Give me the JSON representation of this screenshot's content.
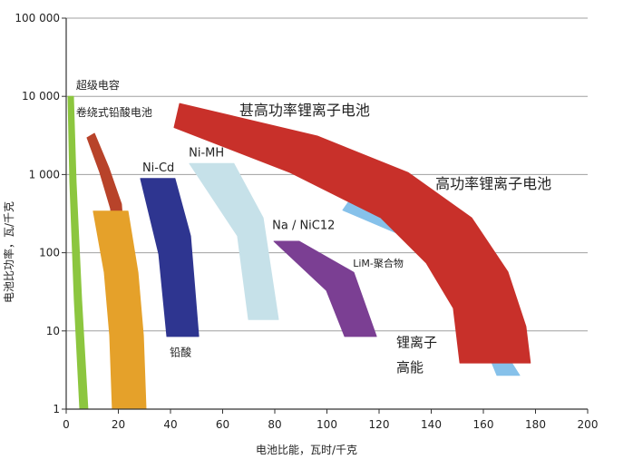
{
  "chart_data": {
    "type": "area",
    "title": "",
    "xlabel": "电池比能，瓦时/千克",
    "ylabel": "电池比功率，瓦/千克",
    "xlim": [
      0,
      200
    ],
    "ylim": [
      1,
      100000
    ],
    "yscale": "log",
    "grid": "horizontal",
    "x_ticks": [
      0,
      20,
      40,
      60,
      80,
      100,
      120,
      140,
      160,
      180,
      200
    ],
    "x_tick_labels": [
      "0",
      "20",
      "40",
      "60",
      "80",
      "100",
      "120",
      "140",
      "160",
      "180",
      "200"
    ],
    "y_ticks": [
      1,
      10,
      100,
      1000,
      10000,
      100000
    ],
    "y_tick_labels": [
      "1",
      "10",
      "100",
      "1 000",
      "10 000",
      "100 000"
    ],
    "regions": [
      {
        "name": "超级电容",
        "color": "#8cc63f",
        "points": [
          [
            0.7,
            10000
          ],
          [
            2.8,
            10000
          ],
          [
            3.8,
            810
          ],
          [
            5.9,
            25
          ],
          [
            8.3,
            1
          ],
          [
            5.2,
            1
          ],
          [
            3.1,
            25
          ],
          [
            1.4,
            810
          ]
        ]
      },
      {
        "name": "卷绕式铅酸电池",
        "color": "#b8432a",
        "points": [
          [
            8,
            2960
          ],
          [
            10.8,
            3360
          ],
          [
            16.3,
            1230
          ],
          [
            21.2,
            420
          ],
          [
            22.6,
            91
          ],
          [
            18.8,
            91
          ],
          [
            17,
            368
          ],
          [
            12.9,
            1060
          ]
        ]
      },
      {
        "name": "铅酸",
        "color": "#e5a12a",
        "points": [
          [
            10.4,
            340
          ],
          [
            23.7,
            340
          ],
          [
            27.5,
            56
          ],
          [
            29.6,
            8.7
          ],
          [
            30.6,
            1
          ],
          [
            17.7,
            1
          ],
          [
            16.7,
            8.7
          ],
          [
            14.6,
            56
          ]
        ]
      },
      {
        "name": "Ni-Cd",
        "color": "#2e3590",
        "points": [
          [
            28.5,
            890
          ],
          [
            41.7,
            890
          ],
          [
            47.7,
            164
          ],
          [
            50.8,
            8.5
          ],
          [
            38.6,
            8.5
          ],
          [
            35.5,
            96
          ]
        ]
      },
      {
        "name": "Ni-MH",
        "color": "#c6e1e9",
        "points": [
          [
            47.3,
            1380
          ],
          [
            64.3,
            1380
          ],
          [
            75.5,
            280
          ],
          [
            81.4,
            14
          ],
          [
            69.9,
            14
          ],
          [
            65.7,
            164
          ]
        ]
      },
      {
        "name": "Na / NiC12",
        "color": "#7b3f93",
        "points": [
          [
            79.7,
            140
          ],
          [
            89.4,
            140
          ],
          [
            110.3,
            56
          ],
          [
            119,
            8.5
          ],
          [
            106.8,
            8.5
          ],
          [
            99.8,
            33
          ]
        ]
      },
      {
        "name": "LiM-聚合物",
        "color": "#86c1ea",
        "points": [
          [
            110.3,
            560
          ],
          [
            138.1,
            164
          ],
          [
            155.5,
            25
          ],
          [
            173.9,
            2.7
          ],
          [
            165.2,
            2.7
          ],
          [
            159,
            8.7
          ],
          [
            143.3,
            64.5
          ],
          [
            127.7,
            173
          ],
          [
            106.1,
            350
          ]
        ]
      },
      {
        "name": "锂离子电池",
        "color": "#c8302a",
        "points": [
          [
            43.5,
            8100
          ],
          [
            96.3,
            3100
          ],
          [
            131.1,
            1060
          ],
          [
            155.5,
            280
          ],
          [
            169.4,
            57
          ],
          [
            176.3,
            11.4
          ],
          [
            178,
            3.9
          ],
          [
            151,
            3.9
          ],
          [
            148.5,
            19.5
          ],
          [
            138.1,
            74
          ],
          [
            120.7,
            280
          ],
          [
            85.9,
            1060
          ],
          [
            41.4,
            4000
          ]
        ]
      }
    ],
    "annotations": [
      {
        "text": "超级电容",
        "x": 3.8,
        "y": 12400,
        "size": 12
      },
      {
        "text": "卷绕式铅酸电池",
        "x": 3.8,
        "y": 5600,
        "size": 12
      },
      {
        "text": "Ni-Cd",
        "x": 29.2,
        "y": 1100,
        "size": 13
      },
      {
        "text": "Ni-MH",
        "x": 47,
        "y": 1700,
        "size": 13
      },
      {
        "text": "甚高功率锂离子电池",
        "x": 66.4,
        "y": 5700,
        "size": 16
      },
      {
        "text": "高功率锂离子电池",
        "x": 141.6,
        "y": 660,
        "size": 16
      },
      {
        "text": "Na / NiC12",
        "x": 79,
        "y": 200,
        "size": 13
      },
      {
        "text": "LiM-聚合物",
        "x": 110,
        "y": 66,
        "size": 11
      },
      {
        "text": "铅酸",
        "x": 39.7,
        "y": 4.8,
        "size": 12
      },
      {
        "text": "锂离子",
        "x": 126.6,
        "y": 6.2,
        "size": 15
      },
      {
        "text": "高能",
        "x": 126.6,
        "y": 3,
        "size": 15
      }
    ]
  }
}
